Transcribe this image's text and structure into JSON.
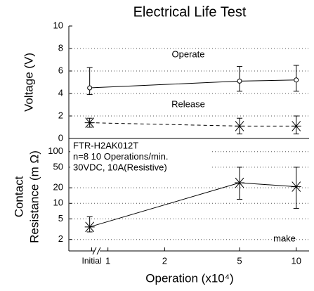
{
  "chart_data": [
    {
      "type": "line",
      "title": "Electrical Life Test",
      "ylabel": "Voltage (V)",
      "ylim": [
        0,
        10
      ],
      "yticks": [
        0,
        2,
        4,
        6,
        8,
        10
      ],
      "grid": true,
      "x": [
        0.8,
        5,
        10
      ],
      "series": [
        {
          "name": "Operate",
          "color": "#000000",
          "marker": "circle",
          "line_style": "solid",
          "values": [
            4.5,
            5.1,
            5.2
          ],
          "low": [
            3.9,
            4.2,
            4.2
          ],
          "high": [
            6.3,
            6.4,
            6.5
          ]
        },
        {
          "name": "Release",
          "color": "#000000",
          "marker": "x",
          "line_style": "dashed",
          "values": [
            1.4,
            1.1,
            1.1
          ],
          "low": [
            1.0,
            0.4,
            0.4
          ],
          "high": [
            1.8,
            1.8,
            2.0
          ]
        }
      ]
    },
    {
      "type": "line",
      "ylabel": [
        "Contact",
        "Resistance (m Ω)"
      ],
      "log_y": true,
      "ylim": [
        1.2,
        180
      ],
      "yticks": [
        2,
        5,
        10,
        20,
        50,
        100
      ],
      "grid": true,
      "xlabel": "Operation (x10⁴)",
      "log_x": true,
      "xlim": [
        0.62,
        11.7
      ],
      "xticks": [
        {
          "value": 0.82,
          "label": "Initial"
        },
        1,
        2,
        5,
        10
      ],
      "x": [
        0.8,
        5,
        10
      ],
      "annotations": [
        "FTR-H2AK012T",
        "n=8  10 Operations/min.",
        "30VDC, 10A(Resistive)"
      ],
      "series": [
        {
          "name": "make",
          "color": "#000000",
          "marker": "x",
          "line_style": "solid",
          "values": [
            3.5,
            25,
            21
          ],
          "low": [
            2.8,
            12,
            8
          ],
          "high": [
            5.5,
            50,
            50
          ]
        }
      ]
    }
  ]
}
